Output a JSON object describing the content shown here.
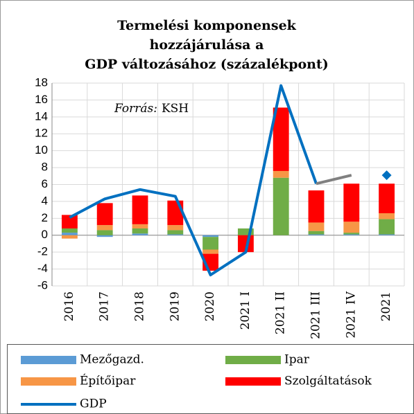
{
  "chart_data": {
    "type": "stacked_bar_line",
    "title": [
      "Termelési komponensek",
      "hozzájárulása a",
      "GDP változásához (százalékpont)"
    ],
    "annotation": {
      "italic": "Forrás:",
      "text": "KSH"
    },
    "categories": [
      "2016",
      "2017",
      "2018",
      "2019",
      "2020",
      "2021 I",
      "2021 II",
      "2021 III",
      "2021 IV",
      "2021"
    ],
    "series": [
      {
        "name": "Mezőgazd.",
        "color": "#5b9bd5",
        "kind": "bar",
        "values": [
          0.3,
          -0.2,
          0.2,
          0.1,
          -0.2,
          0,
          0,
          0.1,
          0.1,
          0.1
        ]
      },
      {
        "name": "Ipar",
        "color": "#70ad47",
        "kind": "bar",
        "values": [
          0.5,
          0.6,
          0.6,
          0.5,
          -1.5,
          0.8,
          6.8,
          0.4,
          0.2,
          1.8
        ]
      },
      {
        "name": "Építőipar",
        "color": "#f79646",
        "kind": "bar",
        "values": [
          -0.4,
          0.6,
          0.5,
          0.6,
          -0.5,
          0,
          0.8,
          1.0,
          1.3,
          0.7
        ]
      },
      {
        "name": "Szolgáltatások",
        "color": "#ff0000",
        "kind": "bar",
        "values": [
          1.6,
          2.6,
          3.4,
          2.9,
          -2.0,
          -2.0,
          7.5,
          3.8,
          4.5,
          3.5
        ]
      },
      {
        "name": "GDP",
        "color": "#0070c0",
        "kind": "line",
        "values": [
          2.1,
          4.3,
          5.4,
          4.6,
          -4.7,
          -2.0,
          17.7,
          6.1,
          null,
          7.1
        ]
      },
      {
        "color": "#808080",
        "kind": "line",
        "values": [
          null,
          null,
          null,
          null,
          null,
          null,
          null,
          6.1,
          7.1,
          null
        ]
      }
    ],
    "ylim": [
      -6,
      18
    ],
    "yticks": [
      -6,
      -4,
      -2,
      0,
      2,
      4,
      6,
      8,
      10,
      12,
      14,
      16,
      18
    ],
    "grid": true
  }
}
